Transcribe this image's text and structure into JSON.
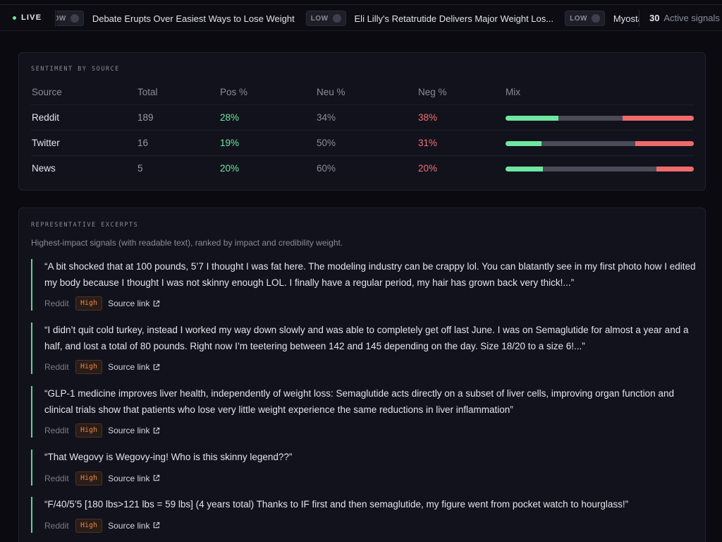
{
  "ticker": {
    "live_label": "LIVE",
    "items": [
      {
        "badge": "LOW",
        "title": "Debate Erupts Over Easiest Ways to Lose Weight"
      },
      {
        "badge": "LOW",
        "title": "Eli Lilly's Retatrutide Delivers Major Weight Los..."
      },
      {
        "badge": "LOW",
        "title": "Myostatin Inhibitors"
      }
    ],
    "active_count": "30",
    "active_label": "Active signals"
  },
  "sentiment": {
    "heading": "SENTIMENT BY SOURCE",
    "columns": [
      "Source",
      "Total",
      "Pos %",
      "Neu %",
      "Neg %",
      "Mix"
    ],
    "rows": [
      {
        "source": "Reddit",
        "total": "189",
        "pos": "28%",
        "neu": "34%",
        "neg": "38%"
      },
      {
        "source": "Twitter",
        "total": "16",
        "pos": "19%",
        "neu": "50%",
        "neg": "31%"
      },
      {
        "source": "News",
        "total": "5",
        "pos": "20%",
        "neu": "60%",
        "neg": "20%"
      }
    ],
    "mix": [
      {
        "pos": 28,
        "neu": 34,
        "neg": 38
      },
      {
        "pos": 19,
        "neu": 50,
        "neg": 31
      },
      {
        "pos": 20,
        "neu": 60,
        "neg": 20
      }
    ]
  },
  "excerpts": {
    "heading": "REPRESENTATIVE EXCERPTS",
    "subtitle": "Highest-impact signals (with readable text), ranked by impact and credibility weight.",
    "items": [
      {
        "text": "“A bit shocked that at 100 pounds, 5’7 I thought I was fat here. The modeling industry can be crappy lol. You can blatantly see in my first photo how I edited my body because I thought I was not skinny enough LOL. I finally have a regular period, my hair has grown back very thick!...”",
        "source": "Reddit",
        "impact": "High",
        "link": "Source link"
      },
      {
        "text": "“I didn’t quit cold turkey, instead I worked my way down slowly and was able to completely get off last June. I was on Semaglutide for almost a year and a half, and lost a total of 80 pounds. Right now I’m teetering between 142 and 145 depending on the day. Size 18/20 to a size 6!...”",
        "source": "Reddit",
        "impact": "High",
        "link": "Source link"
      },
      {
        "text": "“GLP-1 medicine improves liver health, independently of weight loss: Semaglutide acts directly on a subset of liver cells, improving organ function and clinical trials show that patients who lose very little weight experience the same reductions in liver inflammation”",
        "source": "Reddit",
        "impact": "High",
        "link": "Source link"
      },
      {
        "text": "“That Wegovy is Wegovy-ing! Who is this skinny legend??”",
        "source": "Reddit",
        "impact": "High",
        "link": "Source link"
      },
      {
        "text": "“F/40/5’5 [180 lbs>121 lbs = 59 lbs] (4 years total) Thanks to IF first and then semaglutide, my figure went from pocket watch to hourglass!”",
        "source": "Reddit",
        "impact": "High",
        "link": "Source link"
      }
    ]
  },
  "colors": {
    "positive": "#6ee7a0",
    "neutral": "#4a4a58",
    "negative": "#ef6b6b",
    "impact_high": "#e8854a"
  }
}
